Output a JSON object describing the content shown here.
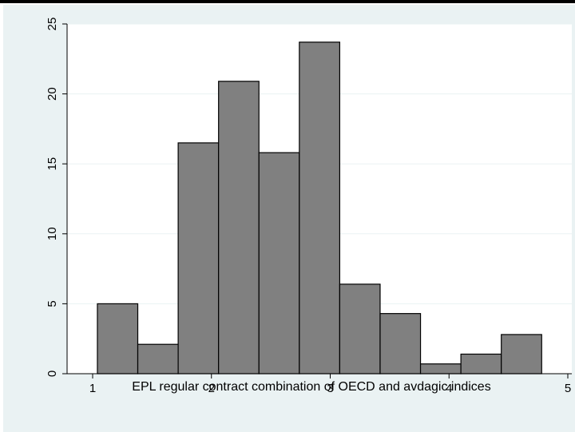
{
  "chart_data": {
    "type": "bar",
    "title": "",
    "xlabel": "EPL regular contract combination of OECD and avdagic indices",
    "ylabel": "",
    "xlim": [
      1,
      5
    ],
    "ylim": [
      0,
      25
    ],
    "x_ticks": [
      1,
      2,
      3,
      4,
      5
    ],
    "y_ticks": [
      0,
      5,
      10,
      15,
      20,
      25
    ],
    "grid": "horizontal",
    "bins": [
      {
        "start": 1.04,
        "end": 1.38,
        "value": 5.0
      },
      {
        "start": 1.38,
        "end": 1.72,
        "value": 2.1
      },
      {
        "start": 1.72,
        "end": 2.06,
        "value": 16.5
      },
      {
        "start": 2.06,
        "end": 2.4,
        "value": 20.9
      },
      {
        "start": 2.4,
        "end": 2.74,
        "value": 15.8
      },
      {
        "start": 2.74,
        "end": 3.08,
        "value": 23.7
      },
      {
        "start": 3.08,
        "end": 3.42,
        "value": 6.4
      },
      {
        "start": 3.42,
        "end": 3.76,
        "value": 4.3
      },
      {
        "start": 3.76,
        "end": 4.1,
        "value": 0.7
      },
      {
        "start": 4.1,
        "end": 4.44,
        "value": 1.4
      },
      {
        "start": 4.44,
        "end": 4.78,
        "value": 2.8
      }
    ],
    "colors": {
      "bar_fill": "#808080",
      "bar_stroke": "#000000",
      "plot_bg": "#ffffff",
      "outer_bg": "#eaf2f3",
      "grid": "#eaf2f3"
    }
  }
}
